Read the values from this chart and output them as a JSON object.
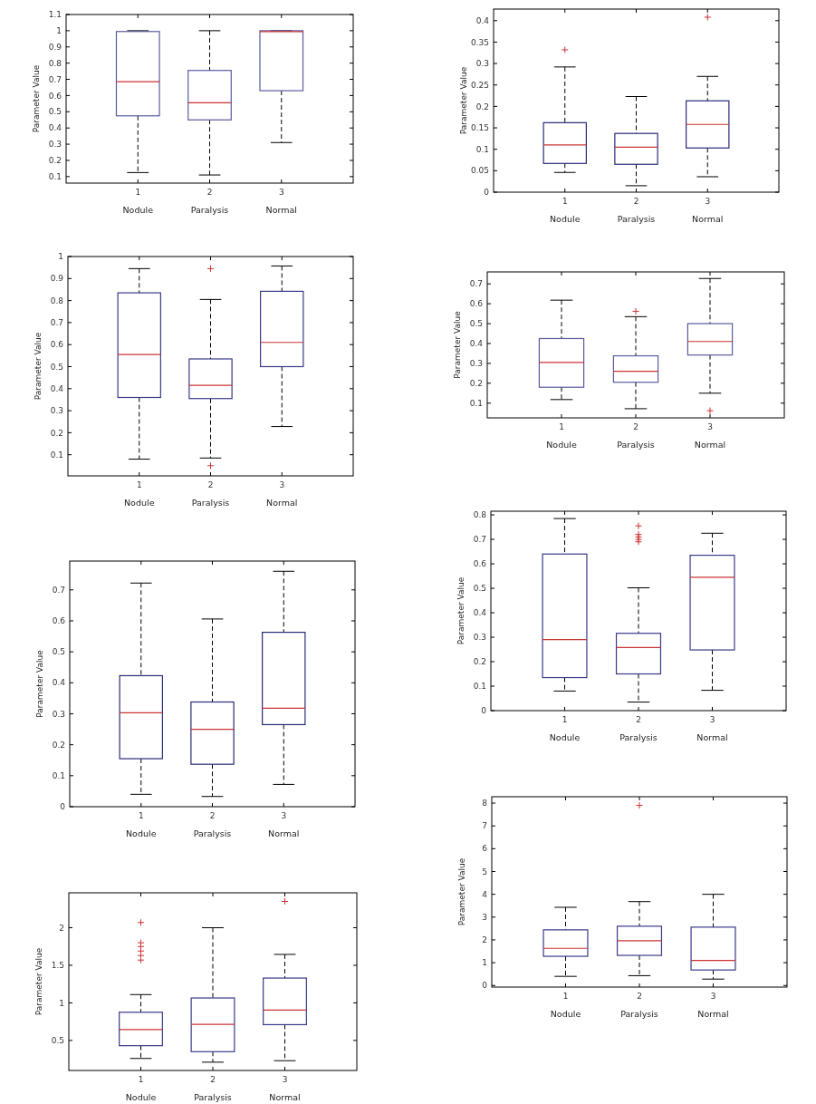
{
  "chart_data": [
    {
      "type": "box",
      "categories": [
        "1",
        "2",
        "3"
      ],
      "ylabel": "Parameter Value",
      "ylim": [
        0.06,
        1.1
      ],
      "yticks": [
        0.1,
        0.2,
        0.3,
        0.4,
        0.5,
        0.6,
        0.7,
        0.8,
        0.9,
        1,
        1.1
      ],
      "line_style": "dashed",
      "marker": "cross",
      "annotations": [
        "Nodule",
        "Paralysis",
        "Normal"
      ],
      "series": [
        {
          "color": "#5a5a9e",
          "boxes": [
            {
              "low": 0.125,
              "q1": 0.475,
              "median": 0.685,
              "q3": 0.995,
              "high": 1.0
            },
            {
              "low": 0.11,
              "q1": 0.45,
              "median": 0.555,
              "q3": 0.755,
              "high": 1.0
            },
            {
              "low": 0.31,
              "q1": 0.63,
              "median": 0.995,
              "q3": 1.0,
              "high": 1.0
            }
          ]
        }
      ]
    },
    {
      "type": "box",
      "categories": [
        "1",
        "2",
        "3"
      ],
      "ylabel": "Parameter Value",
      "ylim": [
        0,
        0.427
      ],
      "yticks": [
        0,
        0.05,
        0.1,
        0.15,
        0.2,
        0.25,
        0.3,
        0.35,
        0.4
      ],
      "line_style": "dashed",
      "marker": "cross",
      "annotations": [
        "Nodule",
        "Paralysis",
        "Normal"
      ],
      "series": [
        {
          "color": "#2a2a7a",
          "boxes": [
            {
              "low": 0.046,
              "q1": 0.067,
              "median": 0.11,
              "q3": 0.162,
              "high": 0.292,
              "outliers": [
                0.332
              ]
            },
            {
              "low": 0.015,
              "q1": 0.065,
              "median": 0.105,
              "q3": 0.137,
              "high": 0.223
            },
            {
              "low": 0.036,
              "q1": 0.103,
              "median": 0.158,
              "q3": 0.213,
              "high": 0.27,
              "outliers": [
                0.408
              ]
            }
          ]
        }
      ]
    },
    {
      "type": "box",
      "categories": [
        "1",
        "2",
        "3"
      ],
      "ylabel": "Parameter Value",
      "ylim": [
        0.004,
        1
      ],
      "yticks": [
        0.1,
        0.2,
        0.3,
        0.4,
        0.5,
        0.6,
        0.7,
        0.8,
        0.9,
        1
      ],
      "line_style": "dashed",
      "marker": "cross",
      "annotations": [
        "Nodule",
        "Paralysis",
        "Normal"
      ],
      "series": [
        {
          "color": "#3a3a8a",
          "boxes": [
            {
              "low": 0.08,
              "q1": 0.36,
              "median": 0.555,
              "q3": 0.835,
              "high": 0.945
            },
            {
              "low": 0.085,
              "q1": 0.355,
              "median": 0.415,
              "q3": 0.535,
              "high": 0.805,
              "outliers": [
                0.945,
                0.05
              ]
            },
            {
              "low": 0.228,
              "q1": 0.5,
              "median": 0.61,
              "q3": 0.842,
              "high": 0.957
            }
          ]
        }
      ]
    },
    {
      "type": "box",
      "categories": [
        "1",
        "2",
        "3"
      ],
      "ylabel": "Parameter Value",
      "ylim": [
        0.026,
        0.76
      ],
      "yticks": [
        0.1,
        0.2,
        0.3,
        0.4,
        0.5,
        0.6,
        0.7
      ],
      "line_style": "dashed",
      "marker": "cross",
      "annotations": [
        "Nodule",
        "Paralysis",
        "Normal"
      ],
      "series": [
        {
          "color": "#5a5a9e",
          "boxes": [
            {
              "low": 0.118,
              "q1": 0.18,
              "median": 0.305,
              "q3": 0.425,
              "high": 0.618
            },
            {
              "low": 0.072,
              "q1": 0.205,
              "median": 0.26,
              "q3": 0.338,
              "high": 0.535,
              "outliers": [
                0.562
              ]
            },
            {
              "low": 0.15,
              "q1": 0.342,
              "median": 0.41,
              "q3": 0.5,
              "high": 0.727,
              "outliers": [
                0.062
              ]
            }
          ]
        }
      ]
    },
    {
      "type": "box",
      "categories": [
        "1",
        "2",
        "3"
      ],
      "ylabel": "Parameter Value",
      "ylim": [
        0,
        0.793
      ],
      "yticks": [
        0,
        0.1,
        0.2,
        0.3,
        0.4,
        0.5,
        0.6,
        0.7
      ],
      "line_style": "dashed",
      "marker": "cross",
      "annotations": [
        "Nodule",
        "Paralysis",
        "Normal"
      ],
      "series": [
        {
          "color": "#2a2a7a",
          "boxes": [
            {
              "low": 0.04,
              "q1": 0.155,
              "median": 0.303,
              "q3": 0.423,
              "high": 0.722
            },
            {
              "low": 0.033,
              "q1": 0.137,
              "median": 0.25,
              "q3": 0.338,
              "high": 0.606
            },
            {
              "low": 0.072,
              "q1": 0.265,
              "median": 0.318,
              "q3": 0.563,
              "high": 0.76
            }
          ]
        }
      ]
    },
    {
      "type": "box",
      "categories": [
        "1",
        "2",
        "3"
      ],
      "ylabel": "Parameter Value",
      "ylim": [
        0,
        0.815
      ],
      "yticks": [
        0,
        0.1,
        0.2,
        0.3,
        0.4,
        0.5,
        0.6,
        0.7,
        0.8
      ],
      "line_style": "dashed",
      "marker": "cross",
      "annotations": [
        "Nodule",
        "Paralysis",
        "Normal"
      ],
      "series": [
        {
          "color": "#3a3a8a",
          "boxes": [
            {
              "low": 0.08,
              "q1": 0.135,
              "median": 0.29,
              "q3": 0.64,
              "high": 0.785
            },
            {
              "low": 0.035,
              "q1": 0.15,
              "median": 0.258,
              "q3": 0.316,
              "high": 0.502,
              "outliers": [
                0.755,
                0.72,
                0.71,
                0.7,
                0.69
              ]
            },
            {
              "low": 0.083,
              "q1": 0.248,
              "median": 0.545,
              "q3": 0.635,
              "high": 0.725
            }
          ]
        }
      ]
    },
    {
      "type": "box",
      "categories": [
        "1",
        "2",
        "3"
      ],
      "ylabel": "Parameter Value",
      "ylim": [
        0.1,
        2.465
      ],
      "yticks": [
        0.5,
        1,
        1.5,
        2
      ],
      "line_style": "dashed",
      "marker": "cross",
      "annotations": [
        "Nodule",
        "Paralysis",
        "Normal"
      ],
      "series": [
        {
          "color": "#3a3a8a",
          "boxes": [
            {
              "low": 0.26,
              "q1": 0.43,
              "median": 0.645,
              "q3": 0.875,
              "high": 1.11,
              "outliers": [
                2.07,
                1.8,
                1.75,
                1.69,
                1.63,
                1.57
              ]
            },
            {
              "low": 0.21,
              "q1": 0.35,
              "median": 0.715,
              "q3": 1.065,
              "high": 2.0
            },
            {
              "low": 0.23,
              "q1": 0.71,
              "median": 0.905,
              "q3": 1.33,
              "high": 1.645,
              "outliers": [
                2.35
              ]
            }
          ]
        }
      ]
    },
    {
      "type": "box",
      "categories": [
        "1",
        "2",
        "3"
      ],
      "ylabel": "Parameter Value",
      "ylim": [
        -0.07,
        8.28
      ],
      "yticks": [
        0,
        1,
        2,
        3,
        4,
        5,
        6,
        7,
        8
      ],
      "line_style": "dashed",
      "marker": "cross",
      "annotations": [
        "Nodule",
        "Paralysis",
        "Normal"
      ],
      "series": [
        {
          "color": "#3a3a8a",
          "boxes": [
            {
              "low": 0.4,
              "q1": 1.28,
              "median": 1.63,
              "q3": 2.44,
              "high": 3.43
            },
            {
              "low": 0.43,
              "q1": 1.32,
              "median": 1.96,
              "q3": 2.6,
              "high": 3.68,
              "outliers": [
                7.9
              ]
            },
            {
              "low": 0.28,
              "q1": 0.68,
              "median": 1.1,
              "q3": 2.56,
              "high": 4.0
            }
          ]
        }
      ]
    }
  ]
}
